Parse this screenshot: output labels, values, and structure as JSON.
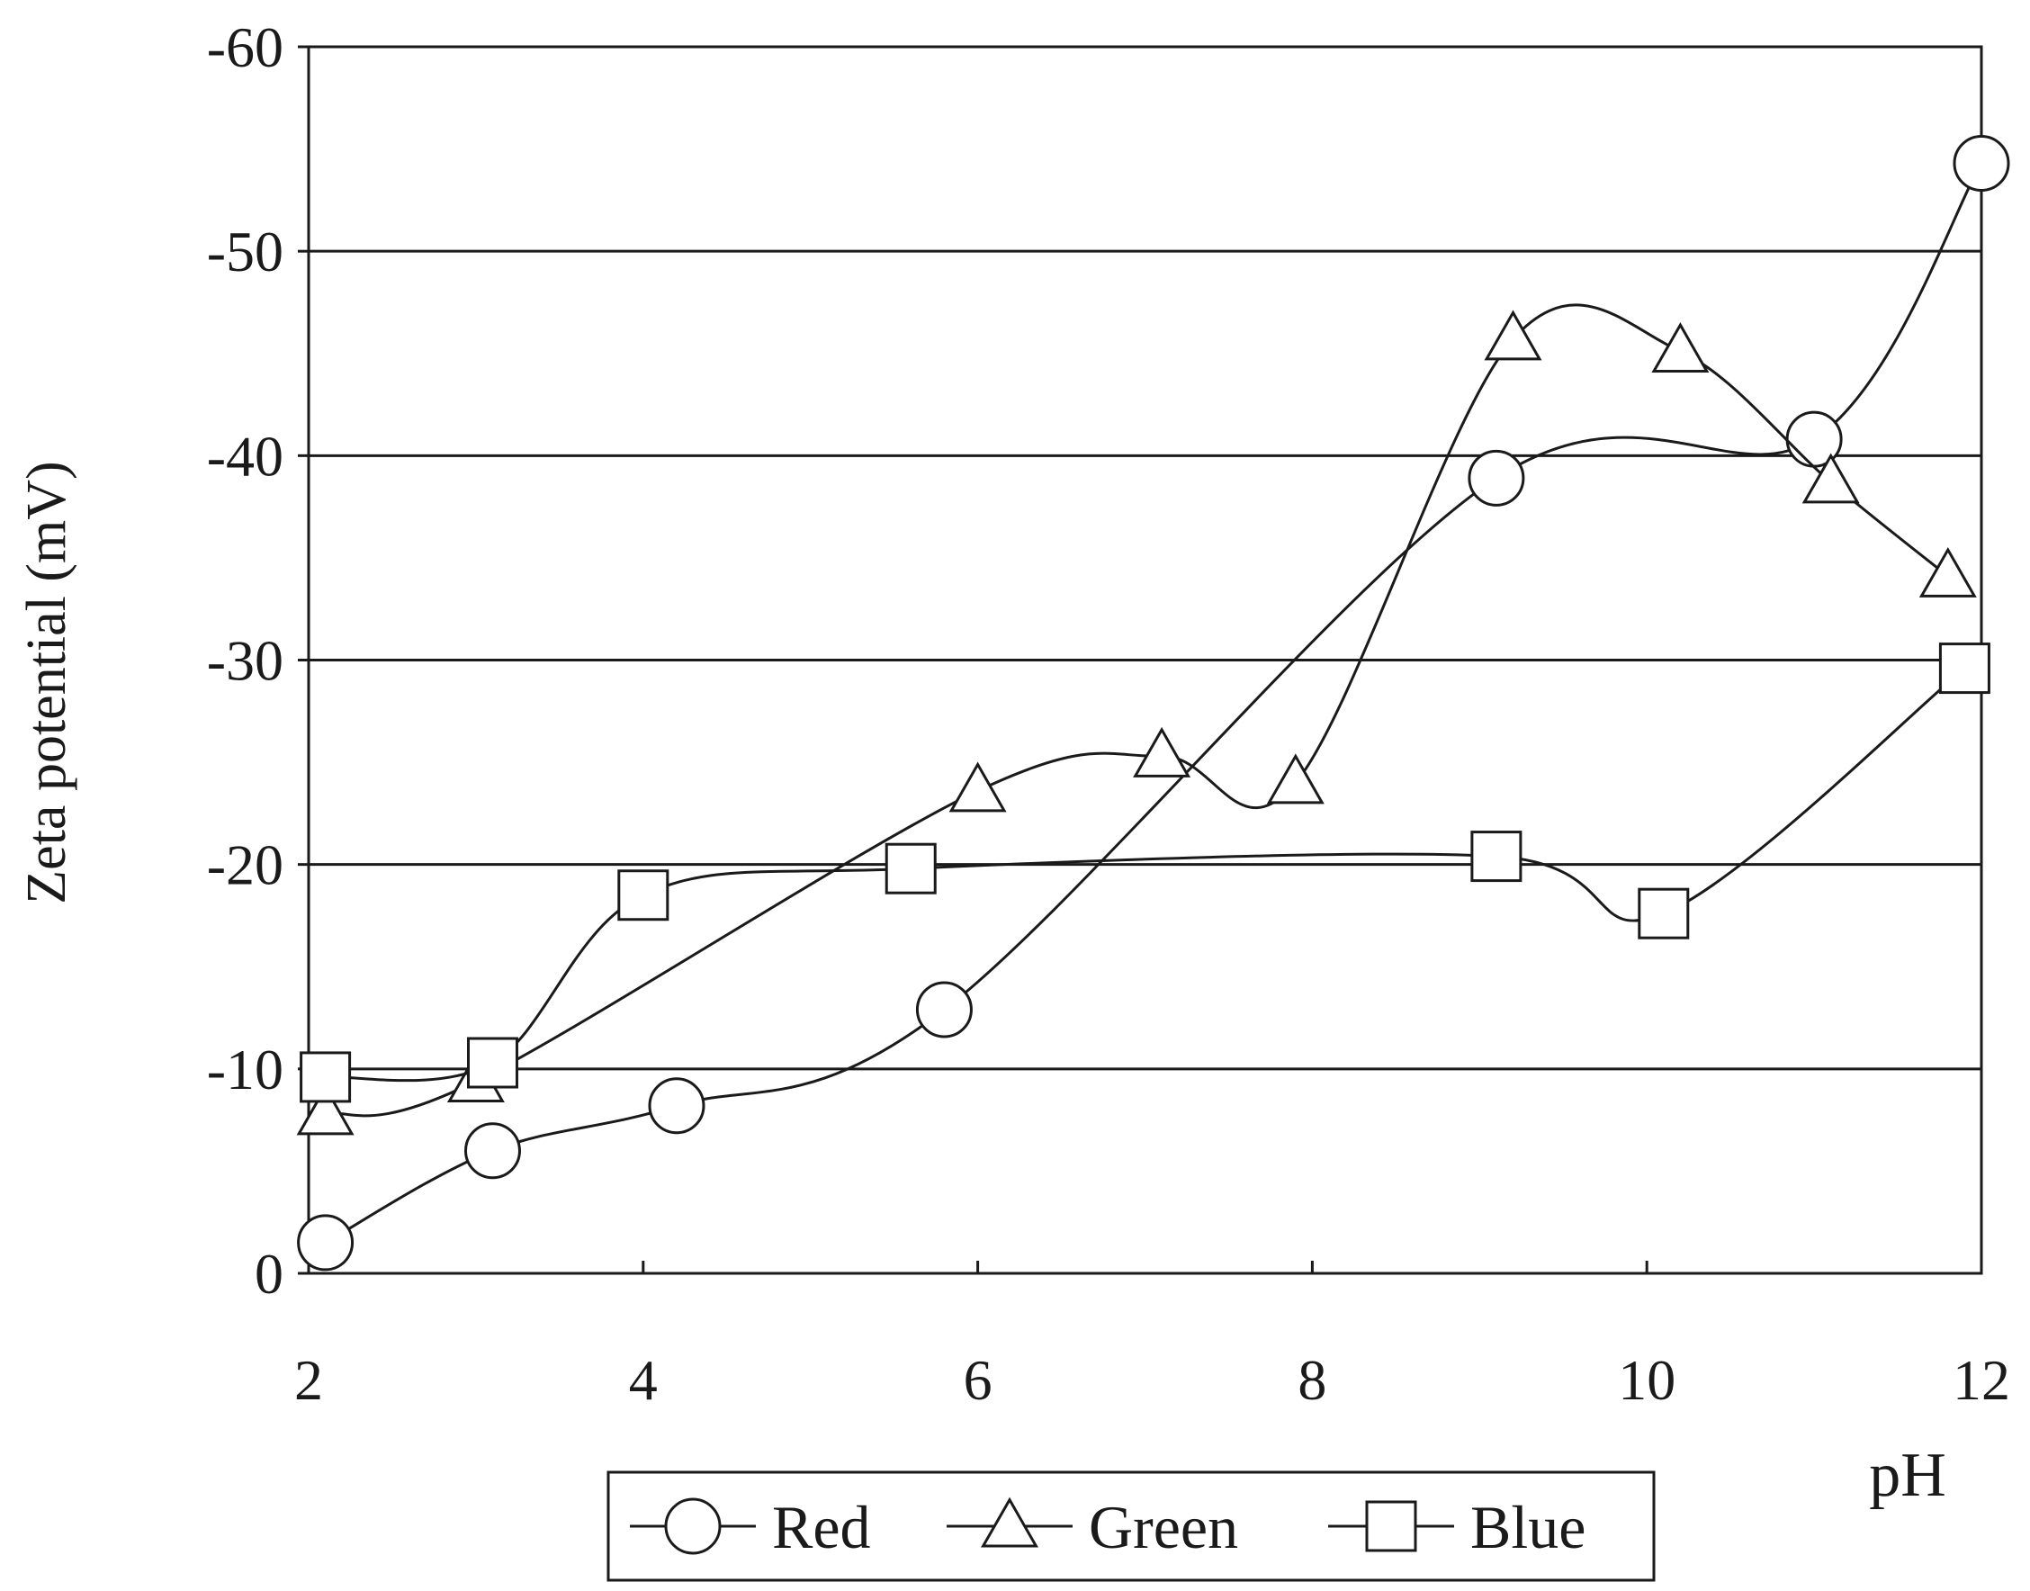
{
  "chart_data": {
    "type": "line",
    "title": "",
    "xlabel": "pH",
    "ylabel": "Zeta potential (mV)",
    "xlim": [
      2,
      12
    ],
    "ylim": [
      0,
      -60
    ],
    "y_axis_inverted": true,
    "grid": "horizontal",
    "xticks": [
      2,
      4,
      6,
      8,
      10,
      12
    ],
    "xtick_labels": [
      "2",
      "4",
      "6",
      "8",
      "10",
      "12"
    ],
    "yticks": [
      0,
      -10,
      -20,
      -30,
      -40,
      -50,
      -60
    ],
    "ytick_labels": [
      "0",
      "-10",
      "-20",
      "-30",
      "-40",
      "-50",
      "-60"
    ],
    "legend_position": "bottom-center",
    "line_color": "#1a1a1a",
    "series": [
      {
        "name": "Red",
        "marker": "circle",
        "x": [
          2.1,
          3.1,
          4.2,
          5.8,
          9.1,
          11.0,
          12.0
        ],
        "y": [
          -1.5,
          -6.0,
          -8.2,
          -12.9,
          -38.9,
          -40.8,
          -54.3
        ]
      },
      {
        "name": "Green",
        "marker": "triangle",
        "x": [
          2.1,
          3.0,
          6.0,
          7.1,
          7.9,
          9.2,
          10.2,
          11.1,
          11.8
        ],
        "y": [
          -7.8,
          -9.4,
          -23.6,
          -25.3,
          -24.0,
          -45.7,
          -45.1,
          -38.7,
          -34.1
        ]
      },
      {
        "name": "Blue",
        "marker": "square",
        "x": [
          2.1,
          3.1,
          4.0,
          5.6,
          9.1,
          10.1,
          11.9
        ],
        "y": [
          -9.6,
          -10.3,
          -18.5,
          -19.8,
          -20.4,
          -17.6,
          -29.6
        ]
      }
    ]
  }
}
